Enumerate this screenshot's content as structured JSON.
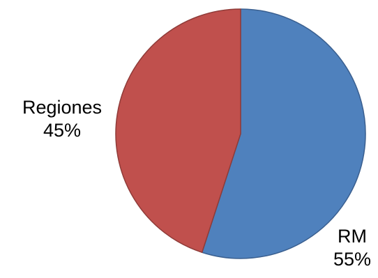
{
  "chart_data": {
    "type": "pie",
    "slices": [
      {
        "label": "RM",
        "value": 55,
        "value_label": "55%",
        "color": "#4f81bd",
        "stroke": "#3a5f8f"
      },
      {
        "label": "Regiones",
        "value": 45,
        "value_label": "45%",
        "color": "#c0504d",
        "stroke": "#8f3b38"
      }
    ],
    "start_angle": "12 o'clock",
    "direction": "clockwise",
    "legend": "none",
    "labels": "outside"
  }
}
